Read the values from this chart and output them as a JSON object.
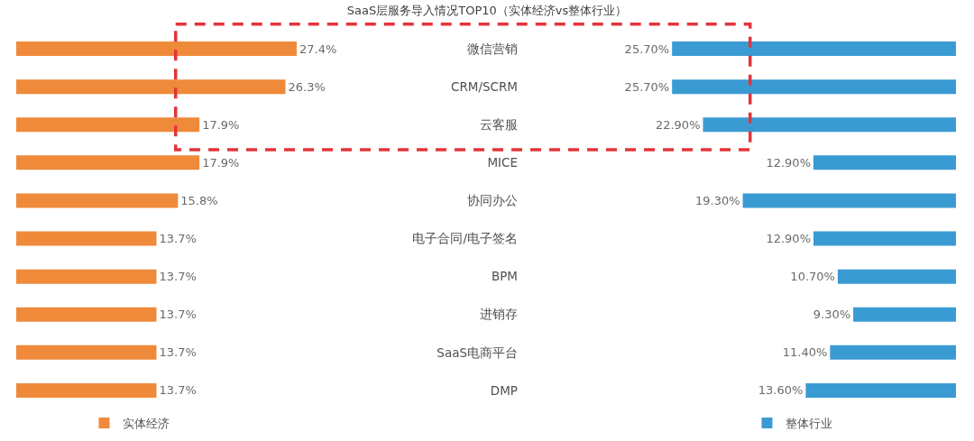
{
  "chart_data": [
    {
      "type": "bar",
      "orientation": "horizontal",
      "title": "SaaS层服务导入情况TOP10（实体经济vs整体行业）",
      "categories": [
        "微信营销",
        "CRM/SCRM",
        "云客服",
        "MICE",
        "协同办公",
        "电子合同/电子签名",
        "BPM",
        "进销存",
        "SaaS电商平台",
        "DMP"
      ],
      "series": [
        {
          "name": "实体经济",
          "color": "#ef8a3b",
          "values": [
            27.4,
            26.3,
            17.9,
            17.9,
            15.8,
            13.7,
            13.7,
            13.7,
            13.7,
            13.7
          ],
          "value_labels": [
            "27.4%",
            "26.3%",
            "17.9%",
            "17.9%",
            "15.8%",
            "13.7%",
            "13.7%",
            "13.7%",
            "13.7%",
            "13.7%"
          ]
        }
      ],
      "legend": "bottom",
      "tick_labels": "y"
    },
    {
      "type": "bar",
      "orientation": "horizontal",
      "categories": [
        null,
        null,
        null,
        null,
        null,
        null,
        null,
        null,
        null,
        null
      ],
      "series": [
        {
          "name": "整体行业",
          "color": "#3a9bd3",
          "values": [
            25.7,
            25.7,
            22.9,
            12.9,
            19.3,
            12.9,
            10.7,
            9.3,
            11.4,
            13.6
          ],
          "value_labels": [
            "25.70%",
            "25.70%",
            "22.90%",
            "12.90%",
            "19.30%",
            "12.90%",
            "10.70%",
            "9.30%",
            "11.40%",
            "13.60%"
          ]
        }
      ],
      "legend": "bottom"
    }
  ]
}
